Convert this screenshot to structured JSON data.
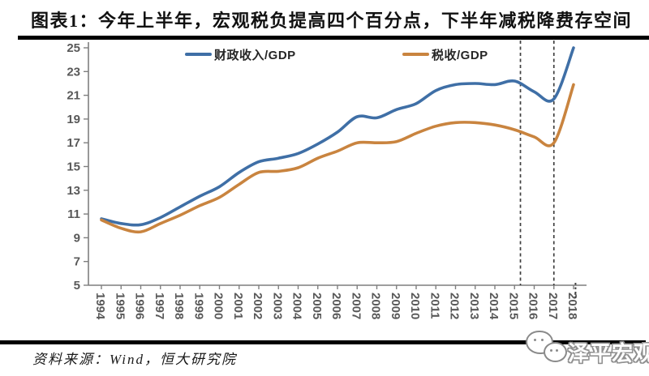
{
  "title": "图表1：今年上半年，宏观税负提高四个百分点，下半年减税降费存空间",
  "source_note": "资料来源：Wind，恒大研究院",
  "logo": {
    "text": "泽平宏观",
    "icon": "wechat-chat-bubbles-icon"
  },
  "colors": {
    "fiscal_line": "#3f6fa6",
    "tax_line": "#c9843f",
    "dashed_guide": "#404040",
    "axis": "#7f7f7f",
    "tick_label": "#595959",
    "title_text": "#111111"
  },
  "chart_data": {
    "type": "line",
    "title": "图表1：今年上半年，宏观税负提高四个百分点，下半年减税降费存空间",
    "x": [
      1994,
      1995,
      1996,
      1997,
      1998,
      1999,
      2000,
      2001,
      2002,
      2003,
      2004,
      2005,
      2006,
      2007,
      2008,
      2009,
      2010,
      2011,
      2012,
      2013,
      2014,
      2015,
      2016,
      2017,
      2018
    ],
    "series": [
      {
        "name": "财政收入/GDP",
        "color": "#3f6fa6",
        "values": [
          10.6,
          10.2,
          10.1,
          10.7,
          11.6,
          12.5,
          13.3,
          14.5,
          15.4,
          15.7,
          16.1,
          16.9,
          17.9,
          19.2,
          19.1,
          19.8,
          20.3,
          21.4,
          21.9,
          22.0,
          21.9,
          22.2,
          21.3,
          20.7,
          25.0
        ]
      },
      {
        "name": "税收/GDP",
        "color": "#c9843f",
        "values": [
          10.5,
          9.8,
          9.5,
          10.2,
          10.9,
          11.7,
          12.4,
          13.5,
          14.5,
          14.6,
          14.9,
          15.7,
          16.3,
          17.0,
          17.0,
          17.1,
          17.8,
          18.4,
          18.7,
          18.7,
          18.5,
          18.1,
          17.5,
          17.0,
          21.9
        ]
      }
    ],
    "ylim": [
      5,
      25
    ],
    "yticks": [
      5,
      7,
      9,
      11,
      13,
      15,
      17,
      19,
      21,
      23,
      25
    ],
    "xlabel": "",
    "ylabel": "",
    "grid": false,
    "legend_position": "top-center",
    "vline_years_dashed": [
      2015.3,
      2017
    ],
    "axis_marker_year_dotted": 2018.1
  }
}
